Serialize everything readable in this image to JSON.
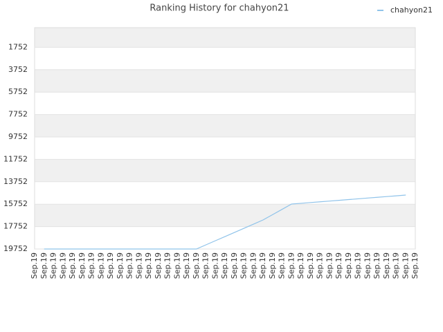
{
  "chart_data": {
    "type": "line",
    "title": "Ranking History for chahyon21",
    "categories": [
      "Sep.19",
      "Sep.19",
      "Sep.19",
      "Sep.19",
      "Sep.19",
      "Sep.19",
      "Sep.19",
      "Sep.19",
      "Sep.19",
      "Sep.19",
      "Sep.19",
      "Sep.19",
      "Sep.19",
      "Sep.19",
      "Sep.19",
      "Sep.19",
      "Sep.19",
      "Sep.19",
      "Sep.19",
      "Sep.19",
      "Sep.19",
      "Sep.19",
      "Sep.19",
      "Sep.19",
      "Sep.19",
      "Sep.19",
      "Sep.19",
      "Sep.19",
      "Sep.19",
      "Sep.19",
      "Sep.19",
      "Sep.19",
      "Sep.19",
      "Sep.19",
      "Sep.19",
      "Sep.19",
      "Sep.19",
      "Sep.19",
      "Sep.19",
      "Sep.19",
      "Sep.19"
    ],
    "series": [
      {
        "name": "chahyon21",
        "color": "#8fc3ea",
        "values": [
          null,
          19752,
          19752,
          19752,
          19752,
          19752,
          19752,
          19752,
          19752,
          19752,
          19752,
          19752,
          19752,
          19752,
          19752,
          19752,
          19752,
          19752,
          19382,
          19012,
          18642,
          18272,
          17902,
          17532,
          17160,
          16687,
          16213,
          15740,
          15673,
          15606,
          15540,
          15473,
          15406,
          15339,
          15272,
          15205,
          15139,
          15072,
          15005,
          14938,
          null
        ]
      }
    ],
    "ylim": [
      19752,
      0
    ],
    "yticks": [
      1752,
      3752,
      5752,
      7752,
      9752,
      11752,
      13752,
      15752,
      17752,
      19752
    ],
    "legend": "top-right",
    "grid": true
  }
}
